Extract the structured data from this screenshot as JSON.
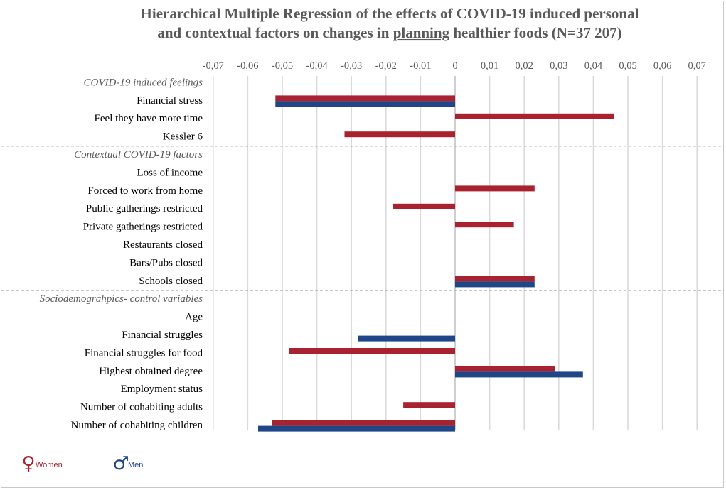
{
  "chart_data": {
    "type": "bar",
    "orientation": "horizontal",
    "title_line1": "Hierarchical Multiple Regression of the effects of COVID-19 induced personal",
    "title_line2_before": "and contextual factors on changes in ",
    "title_line2_underlined": "planning",
    "title_line2_after": " healthier foods (N=37 207)",
    "xlim": [
      -0.07,
      0.07
    ],
    "ticks": [
      -0.07,
      -0.06,
      -0.05,
      -0.04,
      -0.03,
      -0.02,
      -0.01,
      0,
      0.01,
      0.02,
      0.03,
      0.04,
      0.05,
      0.06,
      0.07
    ],
    "tick_labels": [
      "-0,07",
      "-0,06",
      "-0,05",
      "-0,04",
      "-0,03",
      "-0,02",
      "-0,01",
      "0",
      "0,01",
      "0,02",
      "0,03",
      "0,04",
      "0,05",
      "0,06",
      "0,07"
    ],
    "grid": true,
    "sections": [
      {
        "title": "COVID-19 induced feelings",
        "rows": [
          {
            "label": "Financial stress",
            "women": -0.052,
            "men": -0.052
          },
          {
            "label": "Feel they have more time",
            "women": 0.046,
            "men": null
          },
          {
            "label": "Kessler 6",
            "women": -0.032,
            "men": null
          }
        ]
      },
      {
        "title": "Contextual COVID-19 factors",
        "rows": [
          {
            "label": "Loss of income",
            "women": null,
            "men": null
          },
          {
            "label": "Forced to work from home",
            "women": 0.023,
            "men": null
          },
          {
            "label": "Public gatherings restricted",
            "women": -0.018,
            "men": null
          },
          {
            "label": "Private gatherings restricted",
            "women": 0.017,
            "men": null
          },
          {
            "label": "Restaurants closed",
            "women": null,
            "men": null
          },
          {
            "label": "Bars/Pubs closed",
            "women": null,
            "men": null
          },
          {
            "label": "Schools closed",
            "women": 0.023,
            "men": 0.023
          }
        ]
      },
      {
        "title": "Sociodemograhpics- control variables",
        "rows": [
          {
            "label": "Age",
            "women": null,
            "men": null
          },
          {
            "label": "Financial struggles",
            "women": null,
            "men": -0.028
          },
          {
            "label": "Financial struggles for food",
            "women": -0.048,
            "men": null
          },
          {
            "label": "Highest obtained degree",
            "women": 0.029,
            "men": 0.037
          },
          {
            "label": "Employment status",
            "women": null,
            "men": null
          },
          {
            "label": "Number of cohabiting adults",
            "women": -0.015,
            "men": null
          },
          {
            "label": "Number of cohabiting children",
            "women": -0.053,
            "men": -0.057
          }
        ]
      }
    ],
    "series": [
      {
        "key": "women",
        "name": "Women",
        "symbol": "♀",
        "color": "#a8232f"
      },
      {
        "key": "men",
        "name": "Men",
        "symbol": "♂",
        "color": "#1f4788"
      }
    ],
    "legend_position": "bottom-left"
  }
}
